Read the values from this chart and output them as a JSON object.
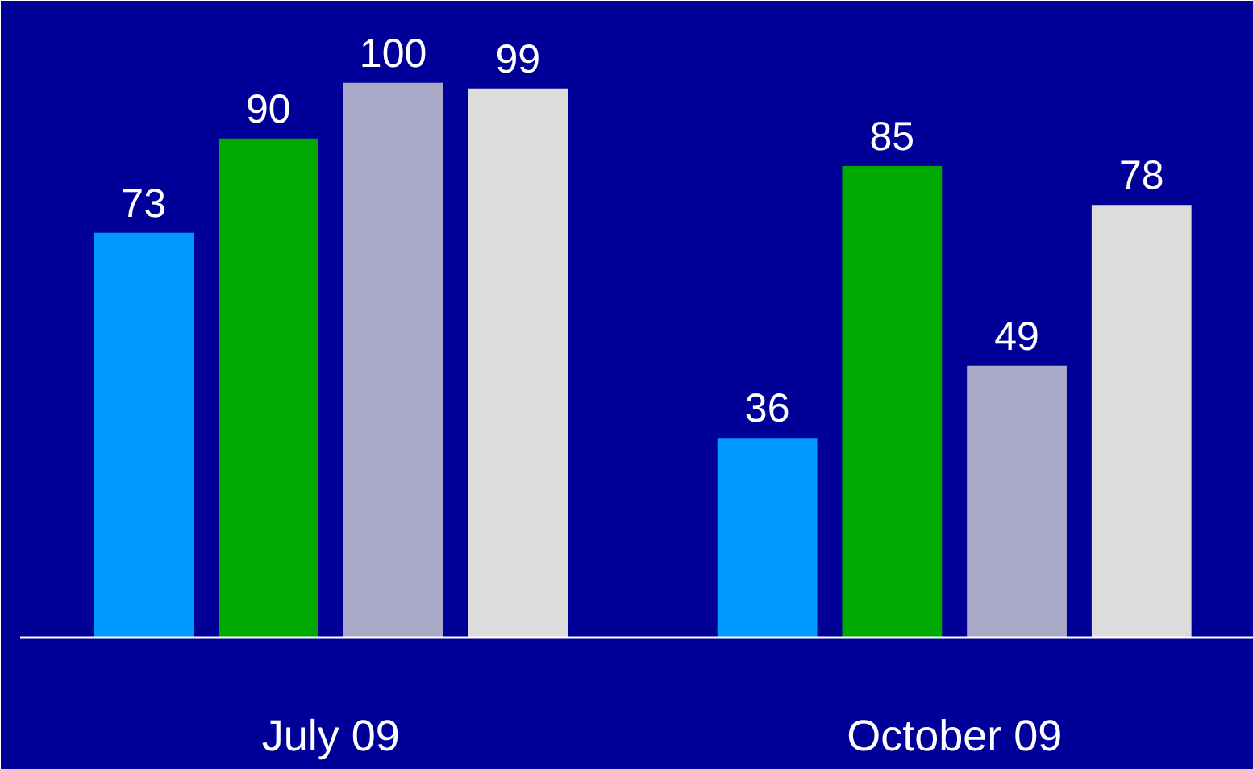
{
  "chart_data": {
    "type": "bar",
    "categories": [
      "July 09",
      "October 09"
    ],
    "series": [
      {
        "color": "#0099ff",
        "values": [
          73,
          36
        ]
      },
      {
        "color": "#00aa00",
        "values": [
          90,
          85
        ]
      },
      {
        "color": "#aaaac8",
        "values": [
          100,
          49
        ]
      },
      {
        "color": "#dcdcdc",
        "values": [
          99,
          78
        ]
      }
    ],
    "data_labels": true
  }
}
